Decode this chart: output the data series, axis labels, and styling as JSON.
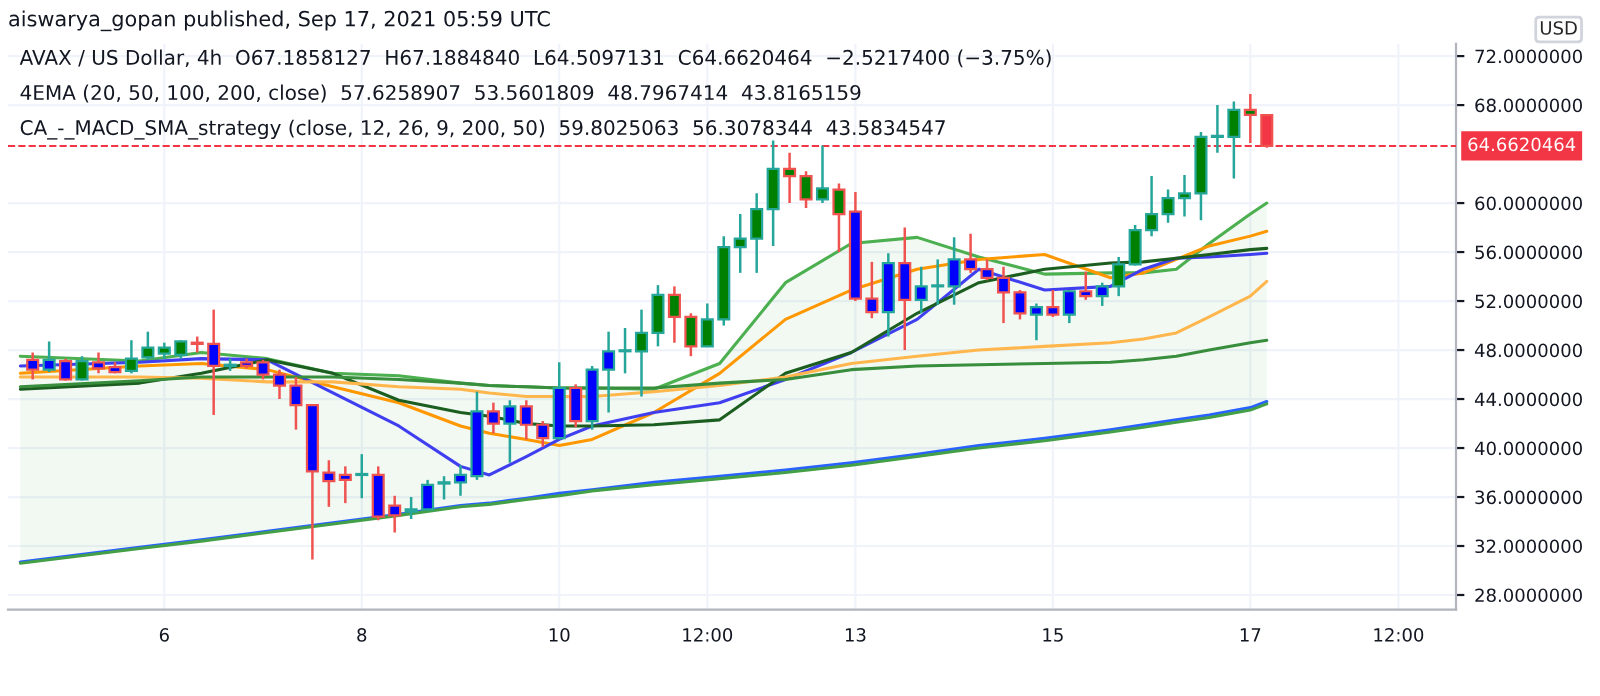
{
  "chart_data": {
    "type": "candlestick",
    "annotations": [
      "aiswarya_gopan published, Sep 17, 2021 05:59 UTC",
      "AVAX / US Dollar, 4h  O67.1858127  H67.1884840  L64.5097131  C64.6620464  −2.5217400 (−3.75%)",
      "4EMA (20, 50, 100, 200, close)  57.6258907  53.5601809  48.7967414  43.8165159",
      "CA_-_MACD_SMA_strategy (close, 12, 26, 9, 200, 50)  59.8025063  56.3078344  43.5834547"
    ],
    "ylabel": "USD",
    "x": [
      "2021-09-04T16:00",
      "2021-09-04T20:00",
      "2021-09-05T00:00",
      "2021-09-05T04:00",
      "2021-09-05T08:00",
      "2021-09-05T12:00",
      "2021-09-05T16:00",
      "2021-09-05T20:00",
      "2021-09-06T00:00",
      "2021-09-06T04:00",
      "2021-09-06T08:00",
      "2021-09-06T12:00",
      "2021-09-06T16:00",
      "2021-09-06T20:00",
      "2021-09-07T00:00",
      "2021-09-07T04:00",
      "2021-09-07T08:00",
      "2021-09-07T12:00",
      "2021-09-07T16:00",
      "2021-09-07T20:00",
      "2021-09-08T00:00",
      "2021-09-08T04:00",
      "2021-09-08T08:00",
      "2021-09-08T12:00",
      "2021-09-08T16:00",
      "2021-09-08T20:00",
      "2021-09-09T00:00",
      "2021-09-09T04:00",
      "2021-09-09T08:00",
      "2021-09-09T12:00",
      "2021-09-09T16:00",
      "2021-09-09T20:00",
      "2021-09-10T00:00",
      "2021-09-10T04:00",
      "2021-09-10T08:00",
      "2021-09-10T12:00",
      "2021-09-10T16:00",
      "2021-09-10T20:00",
      "2021-09-11T00:00",
      "2021-09-11T04:00",
      "2021-09-11T08:00",
      "2021-09-11T12:00",
      "2021-09-11T16:00",
      "2021-09-11T20:00",
      "2021-09-12T00:00",
      "2021-09-12T04:00",
      "2021-09-12T08:00",
      "2021-09-12T12:00",
      "2021-09-12T16:00",
      "2021-09-12T20:00",
      "2021-09-13T00:00",
      "2021-09-13T04:00",
      "2021-09-13T08:00",
      "2021-09-13T12:00",
      "2021-09-13T16:00",
      "2021-09-13T20:00",
      "2021-09-14T00:00",
      "2021-09-14T04:00",
      "2021-09-14T08:00",
      "2021-09-14T12:00",
      "2021-09-14T16:00",
      "2021-09-14T20:00",
      "2021-09-15T00:00",
      "2021-09-15T04:00",
      "2021-09-15T08:00",
      "2021-09-15T12:00",
      "2021-09-15T16:00",
      "2021-09-15T20:00",
      "2021-09-16T00:00",
      "2021-09-16T04:00",
      "2021-09-16T08:00",
      "2021-09-16T12:00",
      "2021-09-16T16:00",
      "2021-09-16T20:00",
      "2021-09-17T00:00",
      "2021-09-17T04:00"
    ],
    "ohlc": [
      [
        47.2,
        47.8,
        45.6,
        46.4
      ],
      [
        46.4,
        48.7,
        46.2,
        47.2
      ],
      [
        47.1,
        47.3,
        45.5,
        45.6
      ],
      [
        45.6,
        47.5,
        45.5,
        47.1
      ],
      [
        47.0,
        47.8,
        46.1,
        46.5
      ],
      [
        46.6,
        47.0,
        46.1,
        46.2
      ],
      [
        46.3,
        48.8,
        46.1,
        47.3
      ],
      [
        47.4,
        49.5,
        47.2,
        48.2
      ],
      [
        47.7,
        48.6,
        47.3,
        48.2
      ],
      [
        47.6,
        48.8,
        47.3,
        48.7
      ],
      [
        48.6,
        49.1,
        47.8,
        48.5
      ],
      [
        48.5,
        51.3,
        42.7,
        46.7
      ],
      [
        46.7,
        47.3,
        46.3,
        46.8
      ],
      [
        47.0,
        47.3,
        46.5,
        46.7
      ],
      [
        47.0,
        47.2,
        45.6,
        46.0
      ],
      [
        46.0,
        46.4,
        44.0,
        45.1
      ],
      [
        45.1,
        45.8,
        41.5,
        43.5
      ],
      [
        43.5,
        43.5,
        30.9,
        38.1
      ],
      [
        38.0,
        39.0,
        35.2,
        37.3
      ],
      [
        37.8,
        38.5,
        35.5,
        37.4
      ],
      [
        37.8,
        39.5,
        35.9,
        37.8
      ],
      [
        37.8,
        38.5,
        34.1,
        34.4
      ],
      [
        35.3,
        36.1,
        33.1,
        34.5
      ],
      [
        34.8,
        36.0,
        34.2,
        35.0
      ],
      [
        35.0,
        37.4,
        34.9,
        37.0
      ],
      [
        37.1,
        37.7,
        35.8,
        37.2
      ],
      [
        37.2,
        38.6,
        36.1,
        37.8
      ],
      [
        37.7,
        44.6,
        37.4,
        43.0
      ],
      [
        43.0,
        43.7,
        41.2,
        42.0
      ],
      [
        42.0,
        43.9,
        38.8,
        43.4
      ],
      [
        43.4,
        43.9,
        40.7,
        41.9
      ],
      [
        41.9,
        42.2,
        40.1,
        40.8
      ],
      [
        40.8,
        47.0,
        40.7,
        44.9
      ],
      [
        44.9,
        45.2,
        41.7,
        42.2
      ],
      [
        42.2,
        46.7,
        41.5,
        46.4
      ],
      [
        46.4,
        49.5,
        42.9,
        47.9
      ],
      [
        47.9,
        49.8,
        46.1,
        47.9
      ],
      [
        47.9,
        51.3,
        44.2,
        49.4
      ],
      [
        49.4,
        53.3,
        48.3,
        52.5
      ],
      [
        52.5,
        53.2,
        48.6,
        50.7
      ],
      [
        50.7,
        51.0,
        47.5,
        48.3
      ],
      [
        48.3,
        51.8,
        48.3,
        50.5
      ],
      [
        50.5,
        57.3,
        50.0,
        56.4
      ],
      [
        56.4,
        59.1,
        54.3,
        57.1
      ],
      [
        57.1,
        60.8,
        54.3,
        59.5
      ],
      [
        59.5,
        65.1,
        56.5,
        62.8
      ],
      [
        62.8,
        64.1,
        60.0,
        62.2
      ],
      [
        62.2,
        62.6,
        59.6,
        60.3
      ],
      [
        60.3,
        64.7,
        60.0,
        61.2
      ],
      [
        61.1,
        61.6,
        56.0,
        59.1
      ],
      [
        59.3,
        60.9,
        52.0,
        52.2
      ],
      [
        52.2,
        55.2,
        50.6,
        51.1
      ],
      [
        51.1,
        55.9,
        49.1,
        55.1
      ],
      [
        55.1,
        58.0,
        48.0,
        52.1
      ],
      [
        52.1,
        54.8,
        51.0,
        53.2
      ],
      [
        53.2,
        55.4,
        51.7,
        53.2
      ],
      [
        53.2,
        57.2,
        51.7,
        55.4
      ],
      [
        55.4,
        57.5,
        54.3,
        54.6
      ],
      [
        54.6,
        55.4,
        53.7,
        53.9
      ],
      [
        53.9,
        54.8,
        50.2,
        52.7
      ],
      [
        52.7,
        52.9,
        50.5,
        51.0
      ],
      [
        50.9,
        51.8,
        48.8,
        51.5
      ],
      [
        51.5,
        52.9,
        50.7,
        50.9
      ],
      [
        50.9,
        52.9,
        50.2,
        52.8
      ],
      [
        52.8,
        54.4,
        52.1,
        52.4
      ],
      [
        52.4,
        53.5,
        51.6,
        53.2
      ],
      [
        53.2,
        55.6,
        52.4,
        55.0
      ],
      [
        55.0,
        58.2,
        54.9,
        57.8
      ],
      [
        57.8,
        62.2,
        57.3,
        59.1
      ],
      [
        59.1,
        61.1,
        58.4,
        60.4
      ],
      [
        60.4,
        62.3,
        58.9,
        60.8
      ],
      [
        60.8,
        65.8,
        58.6,
        65.4
      ],
      [
        65.4,
        68.0,
        64.1,
        65.4
      ],
      [
        65.4,
        68.3,
        62.0,
        67.6
      ],
      [
        67.6,
        68.9,
        64.9,
        67.2
      ],
      [
        67.1858127,
        67.188484,
        64.5097131,
        64.6620464
      ]
    ],
    "colors": [
      "#0000ff",
      "#0000ff",
      "#0000ff",
      "#008000",
      "#0000ff",
      "#0000ff",
      "#008000",
      "#008000",
      "#008000",
      "#008000",
      "#f23645",
      "#0000ff",
      "#0000ff",
      "#0000ff",
      "#0000ff",
      "#0000ff",
      "#0000ff",
      "#0000ff",
      "#0000ff",
      "#0000ff",
      "#f23645",
      "#0000ff",
      "#0000ff",
      "#800080",
      "#0000ff",
      "#f23645",
      "#0000ff",
      "#0000ff",
      "#0000ff",
      "#0000ff",
      "#0000ff",
      "#0000ff",
      "#0000ff",
      "#0000ff",
      "#0000ff",
      "#0000ff",
      "#f23645",
      "#008000",
      "#008000",
      "#008000",
      "#008000",
      "#008000",
      "#008000",
      "#008000",
      "#008000",
      "#008000",
      "#008000",
      "#008000",
      "#008000",
      "#008000",
      "#0000ff",
      "#0000ff",
      "#0000ff",
      "#0000ff",
      "#0000ff",
      "#26a69a",
      "#0000ff",
      "#0000ff",
      "#0000ff",
      "#0000ff",
      "#0000ff",
      "#0000ff",
      "#0000ff",
      "#0000ff",
      "#0000ff",
      "#0000ff",
      "#008000",
      "#008000",
      "#008000",
      "#008000",
      "#008000",
      "#008000",
      "#26a69a",
      "#008000",
      "#008000",
      "#f23645"
    ],
    "series": [
      {
        "type": "line",
        "color": "#4caf50",
        "x": [
          "2021-09-04T13:00",
          "2021-09-05T18:00",
          "2021-09-06T09:00",
          "2021-09-07T01:00",
          "2021-09-07T17:00",
          "2021-09-08T09:00",
          "2021-09-09T00:00",
          "2021-09-09T07:00",
          "2021-09-09T16:00",
          "2021-09-10T00:00",
          "2021-09-10T08:00",
          "2021-09-10T23:00",
          "2021-09-11T15:00",
          "2021-09-12T07:00",
          "2021-09-12T23:00",
          "2021-09-13T15:00",
          "2021-09-14T06:00",
          "2021-09-14T22:00",
          "2021-09-15T14:00",
          "2021-09-15T22:00",
          "2021-09-16T06:00",
          "2021-09-16T14:00",
          "2021-09-17T00:00",
          "2021-09-17T04:00"
        ],
        "values": [
          47.5,
          47.1,
          47.8,
          47.3,
          46.1,
          45.9,
          45.3,
          45.1,
          45.0,
          44.9,
          44.9,
          44.8,
          46.9,
          53.5,
          56.7,
          57.2,
          55.6,
          54.2,
          54.3,
          54.3,
          54.6,
          56.7,
          59.1,
          60.0
        ],
        "upper": [
          47.5,
          47.1,
          47.8,
          47.3,
          46.1,
          45.9,
          45.3,
          45.1,
          45.0,
          44.9,
          44.9,
          44.8,
          46.9,
          53.5,
          56.7,
          57.2,
          55.6,
          54.2,
          54.3,
          54.3,
          54.6,
          56.7,
          59.1,
          60.0
        ],
        "lower": [
          30.6,
          31.8,
          32.4,
          33.1,
          33.8,
          34.5,
          35.2,
          35.4,
          35.8,
          36.1,
          36.5,
          37.0,
          37.5,
          38.0,
          38.6,
          39.3,
          40.0,
          40.6,
          41.3,
          41.7,
          42.1,
          42.5,
          43.1,
          43.6
        ]
      },
      {
        "type": "line",
        "color": "#ff9800",
        "x": [
          "2021-09-04T13:00",
          "2021-09-05T18:00",
          "2021-09-06T09:00",
          "2021-09-07T01:00",
          "2021-09-07T17:00",
          "2021-09-08T09:00",
          "2021-09-09T00:00",
          "2021-09-09T07:00",
          "2021-09-09T16:00",
          "2021-09-10T00:00",
          "2021-09-10T08:00",
          "2021-09-10T23:00",
          "2021-09-11T15:00",
          "2021-09-12T07:00",
          "2021-09-12T23:00",
          "2021-09-13T15:00",
          "2021-09-14T06:00",
          "2021-09-14T22:00",
          "2021-09-15T14:00",
          "2021-09-15T22:00",
          "2021-09-16T06:00",
          "2021-09-16T14:00",
          "2021-09-17T00:00",
          "2021-09-17T04:00"
        ],
        "values": [
          46.1,
          46.7,
          46.9,
          46.4,
          45.0,
          43.7,
          41.8,
          41.2,
          40.7,
          40.2,
          40.7,
          42.9,
          46.1,
          50.5,
          52.9,
          54.6,
          55.4,
          55.8,
          53.9,
          54.3,
          55.4,
          56.5,
          57.3,
          57.7
        ]
      },
      {
        "type": "line",
        "color": "#3f3ff0",
        "x": [
          "2021-09-04T13:00",
          "2021-09-05T18:00",
          "2021-09-06T09:00",
          "2021-09-07T01:00",
          "2021-09-07T17:00",
          "2021-09-08T09:00",
          "2021-09-09T00:00",
          "2021-09-09T07:00",
          "2021-09-09T16:00",
          "2021-09-10T00:00",
          "2021-09-10T08:00",
          "2021-09-10T23:00",
          "2021-09-11T15:00",
          "2021-09-12T07:00",
          "2021-09-12T23:00",
          "2021-09-13T15:00",
          "2021-09-14T06:00",
          "2021-09-14T22:00",
          "2021-09-15T14:00",
          "2021-09-15T22:00",
          "2021-09-16T06:00",
          "2021-09-16T14:00",
          "2021-09-17T00:00",
          "2021-09-17T04:00"
        ],
        "values": [
          46.7,
          47.0,
          47.3,
          47.2,
          44.5,
          41.8,
          38.5,
          37.8,
          39.3,
          40.7,
          41.8,
          42.9,
          43.7,
          45.6,
          47.8,
          50.5,
          54.6,
          52.9,
          53.2,
          54.6,
          55.5,
          55.6,
          55.8,
          55.9
        ]
      },
      {
        "type": "line",
        "color": "#1b5e20",
        "x": [
          "2021-09-04T13:00",
          "2021-09-05T18:00",
          "2021-09-06T09:00",
          "2021-09-07T01:00",
          "2021-09-07T17:00",
          "2021-09-08T09:00",
          "2021-09-09T00:00",
          "2021-09-09T07:00",
          "2021-09-09T16:00",
          "2021-09-10T00:00",
          "2021-09-10T08:00",
          "2021-09-10T23:00",
          "2021-09-11T15:00",
          "2021-09-12T07:00",
          "2021-09-12T23:00",
          "2021-09-13T15:00",
          "2021-09-14T06:00",
          "2021-09-14T22:00",
          "2021-09-15T14:00",
          "2021-09-15T22:00",
          "2021-09-16T06:00",
          "2021-09-16T14:00",
          "2021-09-17T00:00",
          "2021-09-17T04:00"
        ],
        "values": [
          44.8,
          45.3,
          46.1,
          47.2,
          46.1,
          43.9,
          42.9,
          42.6,
          42.0,
          41.8,
          41.8,
          41.9,
          42.3,
          46.1,
          47.8,
          51.0,
          53.5,
          54.6,
          55.1,
          55.2,
          55.5,
          55.8,
          56.2,
          56.3
        ]
      },
      {
        "type": "line",
        "color": "#ffb74d",
        "x": [
          "2021-09-04T13:00",
          "2021-09-05T18:00",
          "2021-09-06T09:00",
          "2021-09-07T01:00",
          "2021-09-07T17:00",
          "2021-09-08T09:00",
          "2021-09-09T00:00",
          "2021-09-09T07:00",
          "2021-09-09T16:00",
          "2021-09-10T00:00",
          "2021-09-10T08:00",
          "2021-09-10T23:00",
          "2021-09-11T15:00",
          "2021-09-12T07:00",
          "2021-09-12T23:00",
          "2021-09-13T15:00",
          "2021-09-14T06:00",
          "2021-09-14T22:00",
          "2021-09-15T14:00",
          "2021-09-15T22:00",
          "2021-09-16T06:00",
          "2021-09-16T14:00",
          "2021-09-17T00:00",
          "2021-09-17T04:00"
        ],
        "values": [
          45.8,
          45.8,
          45.7,
          45.4,
          45.4,
          45.0,
          44.8,
          44.5,
          44.2,
          44.2,
          44.2,
          44.6,
          45.1,
          45.8,
          46.9,
          47.5,
          48.0,
          48.3,
          48.6,
          48.9,
          49.4,
          50.7,
          52.4,
          53.6
        ]
      },
      {
        "type": "line",
        "color": "#388e3c",
        "x": [
          "2021-09-04T13:00",
          "2021-09-05T18:00",
          "2021-09-06T09:00",
          "2021-09-07T01:00",
          "2021-09-07T17:00",
          "2021-09-08T09:00",
          "2021-09-09T00:00",
          "2021-09-09T07:00",
          "2021-09-09T16:00",
          "2021-09-10T00:00",
          "2021-09-10T08:00",
          "2021-09-10T23:00",
          "2021-09-11T15:00",
          "2021-09-12T07:00",
          "2021-09-12T23:00",
          "2021-09-13T15:00",
          "2021-09-14T06:00",
          "2021-09-14T22:00",
          "2021-09-15T14:00",
          "2021-09-15T22:00",
          "2021-09-16T06:00",
          "2021-09-16T14:00",
          "2021-09-17T00:00",
          "2021-09-17T04:00"
        ],
        "values": [
          45.0,
          45.5,
          45.8,
          45.8,
          45.8,
          45.6,
          45.3,
          45.1,
          45.0,
          44.9,
          44.9,
          44.9,
          45.3,
          45.6,
          46.4,
          46.7,
          46.8,
          46.9,
          47.0,
          47.2,
          47.5,
          48.0,
          48.6,
          48.8
        ]
      },
      {
        "type": "line",
        "color": "#2962ff",
        "x": [
          "2021-09-04T13:00",
          "2021-09-05T18:00",
          "2021-09-06T09:00",
          "2021-09-07T01:00",
          "2021-09-07T17:00",
          "2021-09-08T09:00",
          "2021-09-09T00:00",
          "2021-09-09T07:00",
          "2021-09-09T16:00",
          "2021-09-10T00:00",
          "2021-09-10T08:00",
          "2021-09-10T23:00",
          "2021-09-11T15:00",
          "2021-09-12T07:00",
          "2021-09-12T23:00",
          "2021-09-13T15:00",
          "2021-09-14T06:00",
          "2021-09-14T22:00",
          "2021-09-15T14:00",
          "2021-09-15T22:00",
          "2021-09-16T06:00",
          "2021-09-16T14:00",
          "2021-09-17T00:00",
          "2021-09-17T04:00"
        ],
        "values": [
          30.7,
          31.9,
          32.5,
          33.2,
          33.9,
          34.6,
          35.3,
          35.5,
          35.9,
          36.3,
          36.6,
          37.2,
          37.7,
          38.2,
          38.8,
          39.5,
          40.2,
          40.8,
          41.5,
          41.9,
          42.3,
          42.7,
          43.3,
          43.8
        ]
      },
      {
        "type": "line",
        "color": "#43a047",
        "x": [
          "2021-09-04T13:00",
          "2021-09-05T18:00",
          "2021-09-06T09:00",
          "2021-09-07T01:00",
          "2021-09-07T17:00",
          "2021-09-08T09:00",
          "2021-09-09T00:00",
          "2021-09-09T07:00",
          "2021-09-09T16:00",
          "2021-09-10T00:00",
          "2021-09-10T08:00",
          "2021-09-10T23:00",
          "2021-09-11T15:00",
          "2021-09-12T07:00",
          "2021-09-12T23:00",
          "2021-09-13T15:00",
          "2021-09-14T06:00",
          "2021-09-14T22:00",
          "2021-09-15T14:00",
          "2021-09-15T22:00",
          "2021-09-16T06:00",
          "2021-09-16T14:00",
          "2021-09-17T00:00",
          "2021-09-17T04:00"
        ],
        "values": [
          30.6,
          31.8,
          32.4,
          33.1,
          33.8,
          34.5,
          35.2,
          35.4,
          35.8,
          36.1,
          36.5,
          37.0,
          37.5,
          38.0,
          38.6,
          39.3,
          40.0,
          40.6,
          41.3,
          41.7,
          42.1,
          42.5,
          43.1,
          43.6
        ]
      }
    ],
    "ref_lines": [
      {
        "axis": "y",
        "value": 64.6620464,
        "label": "64.6620464",
        "color": "#f23645",
        "line_style": "dashed"
      }
    ],
    "xlim": [
      "2021-09-04T10:00",
      "2021-09-19T02:00"
    ],
    "xticks": [
      {
        "value": "2021-09-06",
        "label": "6"
      },
      {
        "value": "2021-09-08",
        "label": "8"
      },
      {
        "value": "2021-09-10",
        "label": "10"
      },
      {
        "value": "2021-09-11T12:00",
        "label": "12:00"
      },
      {
        "value": "2021-09-13",
        "label": "13"
      },
      {
        "value": "2021-09-15",
        "label": "15"
      },
      {
        "value": "2021-09-17",
        "label": "17"
      },
      {
        "value": "2021-09-18T12:00",
        "label": "12:00"
      }
    ],
    "ylim": [
      26.8,
      73.0
    ],
    "yticks": [
      {
        "value": 28,
        "label": "28.0000000"
      },
      {
        "value": 32,
        "label": "32.0000000"
      },
      {
        "value": 36,
        "label": "36.0000000"
      },
      {
        "value": 40,
        "label": "40.0000000"
      },
      {
        "value": 44,
        "label": "44.0000000"
      },
      {
        "value": 48,
        "label": "48.0000000"
      },
      {
        "value": 52,
        "label": "52.0000000"
      },
      {
        "value": 56,
        "label": "56.0000000"
      },
      {
        "value": 60,
        "label": "60.0000000"
      },
      {
        "value": 68,
        "label": "68.0000000"
      },
      {
        "value": 72,
        "label": "72.0000000"
      }
    ],
    "grid": true
  }
}
